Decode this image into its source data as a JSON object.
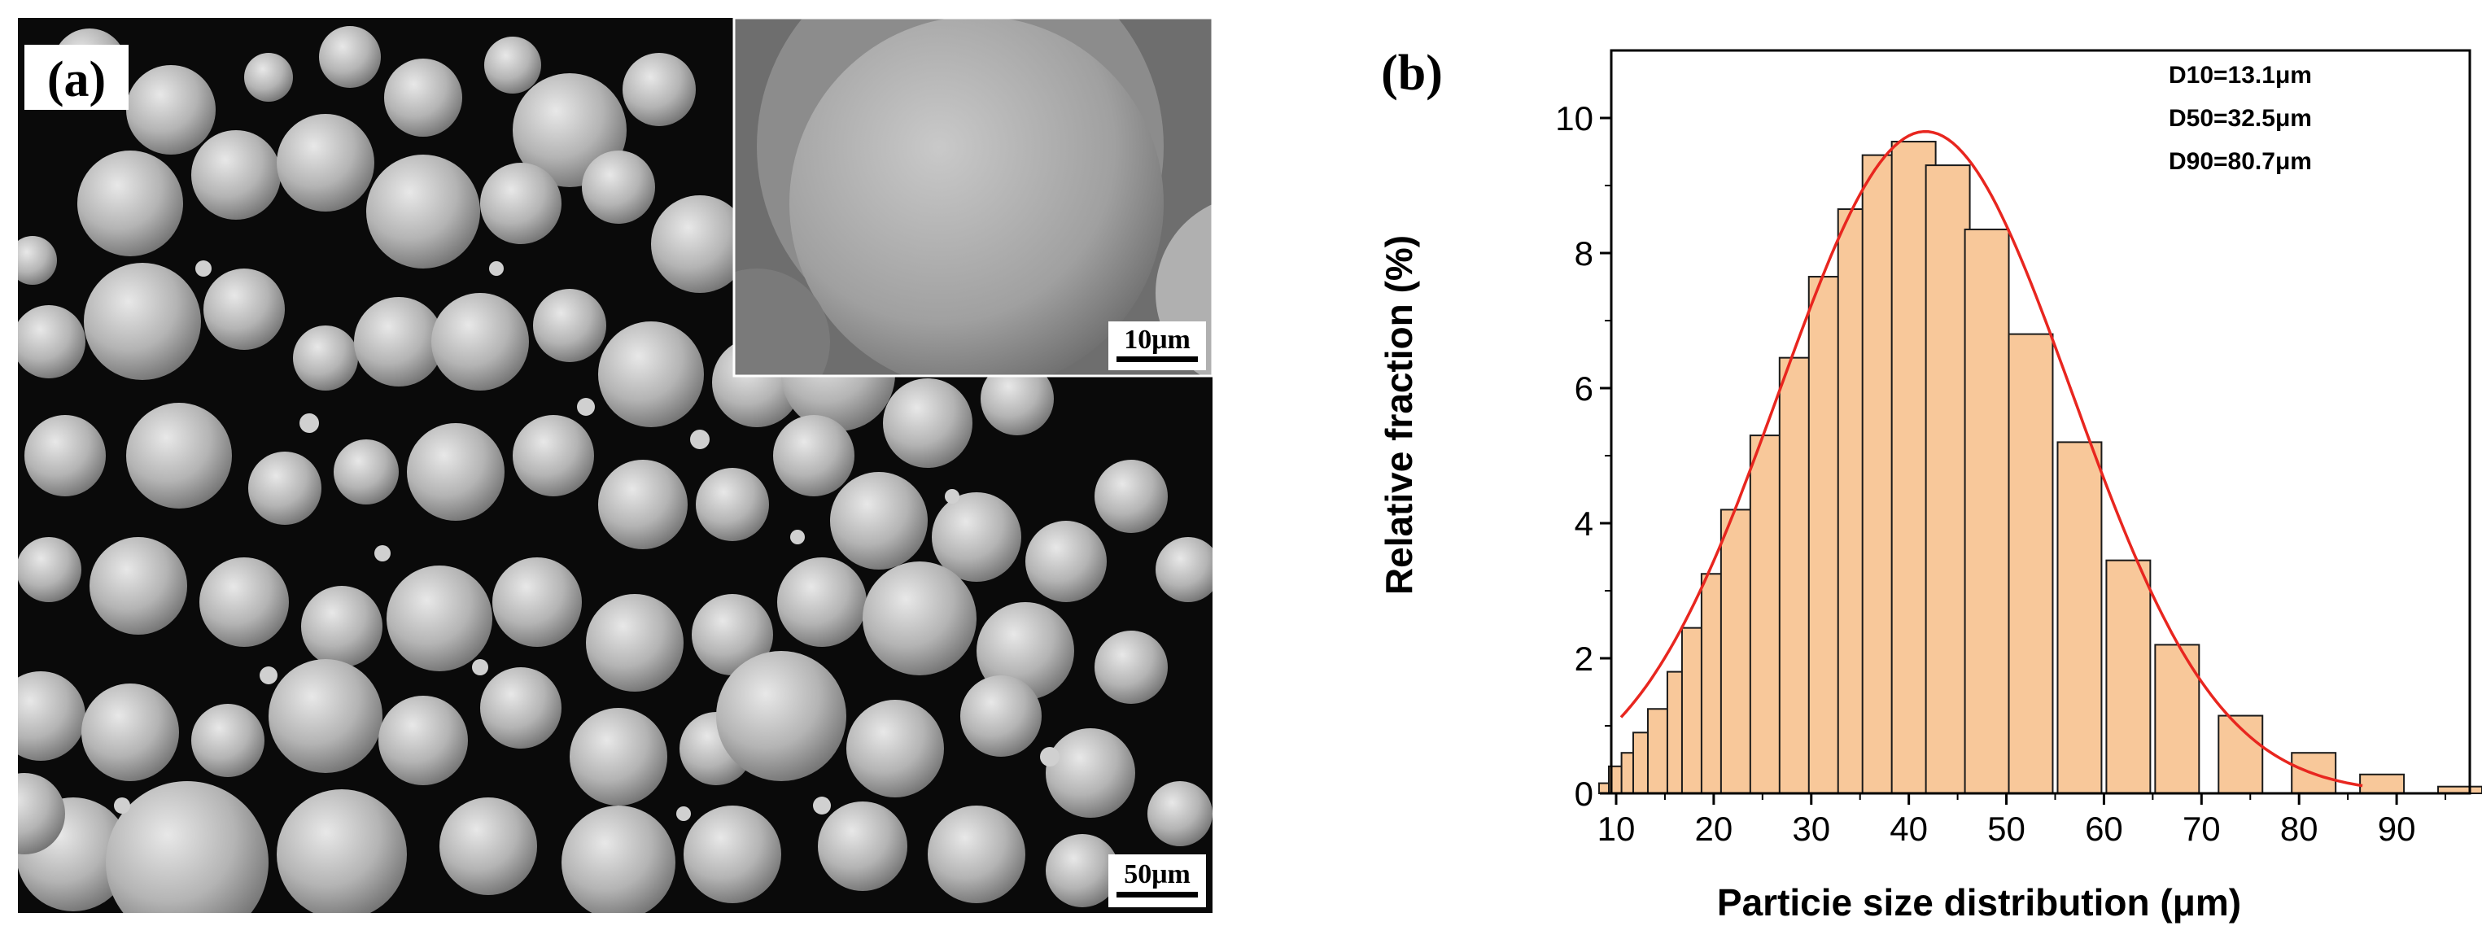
{
  "panel_a": {
    "label": "(a)",
    "inset_scale_bar": "10μm",
    "main_scale_bar": "50μm"
  },
  "panel_b": {
    "label": "(b)",
    "stats": [
      "D10=13.1μm",
      "D50=32.5μm",
      "D90=80.7μm"
    ]
  },
  "colors": {
    "bar_fill": "#f8c89a",
    "bar_stroke": "#1a1a1a",
    "fit_curve": "#e8261f",
    "sem_background": "#0a0a0a",
    "particle": "#b8b8b8"
  },
  "chart_data": {
    "type": "bar",
    "xlabel": "Particie size distribution (μm)",
    "ylabel": "Relative fraction (%)",
    "xlim": [
      9.5,
      97.5
    ],
    "ylim": [
      0,
      11
    ],
    "xticks": [
      10,
      20,
      30,
      40,
      50,
      60,
      70,
      80,
      90
    ],
    "yticks": [
      0,
      2,
      4,
      6,
      8,
      10
    ],
    "bar_width_um": 4.5,
    "bars": [
      {
        "x": 10.5,
        "y": 0.15
      },
      {
        "x": 11.5,
        "y": 0.4
      },
      {
        "x": 12.8,
        "y": 0.6
      },
      {
        "x": 14.0,
        "y": 0.9
      },
      {
        "x": 15.5,
        "y": 1.25
      },
      {
        "x": 17.5,
        "y": 1.8
      },
      {
        "x": 19.0,
        "y": 2.45
      },
      {
        "x": 21.0,
        "y": 3.25
      },
      {
        "x": 23.0,
        "y": 4.2
      },
      {
        "x": 26.0,
        "y": 5.3
      },
      {
        "x": 29.0,
        "y": 6.45
      },
      {
        "x": 32.0,
        "y": 7.65
      },
      {
        "x": 35.0,
        "y": 8.65
      },
      {
        "x": 37.5,
        "y": 9.45
      },
      {
        "x": 40.5,
        "y": 9.65
      },
      {
        "x": 44.0,
        "y": 9.3
      },
      {
        "x": 48.0,
        "y": 8.35
      },
      {
        "x": 52.5,
        "y": 6.8
      },
      {
        "x": 57.5,
        "y": 5.2
      },
      {
        "x": 62.5,
        "y": 3.45
      },
      {
        "x": 67.5,
        "y": 2.2
      },
      {
        "x": 74.0,
        "y": 1.15
      },
      {
        "x": 81.5,
        "y": 0.6
      },
      {
        "x": 88.5,
        "y": 0.28
      },
      {
        "x": 96.5,
        "y": 0.1
      }
    ],
    "fit": {
      "type": "gaussian",
      "peak": 9.8,
      "center": 41.7,
      "sigma": 15.0,
      "x_range": [
        10.5,
        86.5
      ]
    }
  }
}
